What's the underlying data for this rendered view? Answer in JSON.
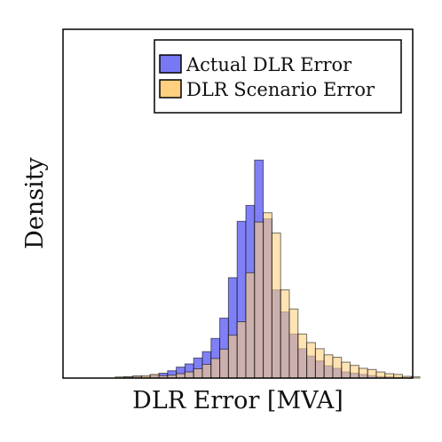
{
  "chart_data": {
    "type": "bar",
    "title": "",
    "xlabel": "DLR Error [MVA]",
    "ylabel": "Density",
    "x_tick_labels": false,
    "y_tick_labels": false,
    "grid": false,
    "legend_position": "top-right",
    "bins": 40,
    "ylim": [
      0,
      1
    ],
    "series": [
      {
        "name": "Actual DLR Error",
        "color": "#7878f5",
        "values": [
          0.0,
          0.0,
          0.0,
          0.0,
          0.0,
          0.0,
          0.005,
          0.008,
          0.005,
          0.012,
          0.02,
          0.03,
          0.045,
          0.058,
          0.082,
          0.108,
          0.162,
          0.245,
          0.41,
          0.64,
          0.705,
          0.89,
          0.65,
          0.36,
          0.27,
          0.18,
          0.12,
          0.09,
          0.07,
          0.05,
          0.04,
          0.025,
          0.02,
          0.015,
          0.01,
          0.006,
          0.005,
          0.003,
          0.0,
          0.0
        ]
      },
      {
        "name": "DLR Scenario Error",
        "color": "#ffd080",
        "values": [
          0.0,
          0.0,
          0.0,
          0.0,
          0.0,
          0.005,
          0.005,
          0.008,
          0.01,
          0.015,
          0.01,
          0.012,
          0.018,
          0.025,
          0.038,
          0.056,
          0.08,
          0.118,
          0.175,
          0.23,
          0.43,
          0.637,
          0.675,
          0.592,
          0.36,
          0.282,
          0.18,
          0.145,
          0.12,
          0.095,
          0.085,
          0.065,
          0.052,
          0.04,
          0.035,
          0.025,
          0.018,
          0.015,
          0.007,
          0.005
        ]
      }
    ]
  }
}
